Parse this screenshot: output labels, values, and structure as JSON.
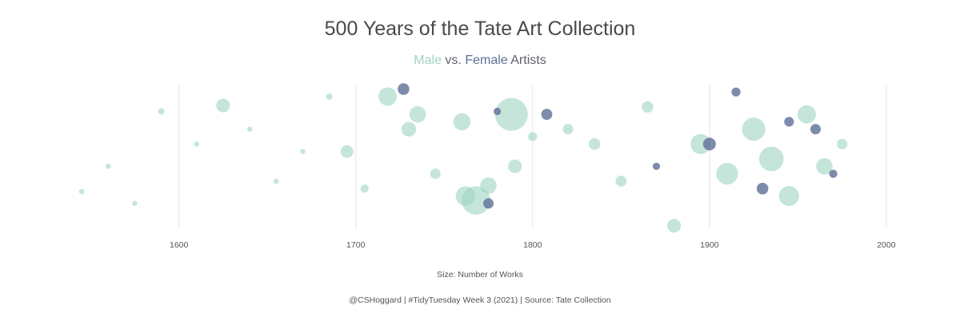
{
  "chart_data": {
    "type": "scatter",
    "title": "500 Years of the Tate Art Collection",
    "subtitle": {
      "male_label": "Male",
      "vs": "vs.",
      "female_label": "Female",
      "rest": "Artists"
    },
    "size_legend": "Size: Number of Works",
    "caption": "@CSHoggard | #TidyTuesday Week 3 (2021) | Source: Tate Collection",
    "xlabel": "",
    "ylabel": "",
    "x_ticks": [
      1600,
      1700,
      1800,
      1900,
      2000
    ],
    "xlim": [
      1535,
      2010
    ],
    "grid": "vertical",
    "legend": "none",
    "colors": {
      "male": "#9fd3c1",
      "female": "#5d6f97"
    },
    "series": [
      {
        "name": "Male",
        "points": [
          {
            "x": 1545,
            "y": 0.28,
            "size": 2
          },
          {
            "x": 1560,
            "y": 0.45,
            "size": 2
          },
          {
            "x": 1575,
            "y": 0.2,
            "size": 2
          },
          {
            "x": 1590,
            "y": 0.82,
            "size": 3
          },
          {
            "x": 1610,
            "y": 0.6,
            "size": 2
          },
          {
            "x": 1625,
            "y": 0.86,
            "size": 14
          },
          {
            "x": 1640,
            "y": 0.7,
            "size": 2
          },
          {
            "x": 1655,
            "y": 0.35,
            "size": 2
          },
          {
            "x": 1670,
            "y": 0.55,
            "size": 2
          },
          {
            "x": 1685,
            "y": 0.92,
            "size": 3
          },
          {
            "x": 1695,
            "y": 0.55,
            "size": 12
          },
          {
            "x": 1705,
            "y": 0.3,
            "size": 5
          },
          {
            "x": 1718,
            "y": 0.92,
            "size": 25
          },
          {
            "x": 1730,
            "y": 0.7,
            "size": 16
          },
          {
            "x": 1735,
            "y": 0.8,
            "size": 20
          },
          {
            "x": 1745,
            "y": 0.4,
            "size": 8
          },
          {
            "x": 1760,
            "y": 0.75,
            "size": 22
          },
          {
            "x": 1762,
            "y": 0.25,
            "size": 28
          },
          {
            "x": 1768,
            "y": 0.22,
            "size": 60
          },
          {
            "x": 1775,
            "y": 0.32,
            "size": 20
          },
          {
            "x": 1788,
            "y": 0.8,
            "size": 80
          },
          {
            "x": 1790,
            "y": 0.45,
            "size": 14
          },
          {
            "x": 1800,
            "y": 0.65,
            "size": 6
          },
          {
            "x": 1820,
            "y": 0.7,
            "size": 8
          },
          {
            "x": 1835,
            "y": 0.6,
            "size": 10
          },
          {
            "x": 1850,
            "y": 0.35,
            "size": 9
          },
          {
            "x": 1865,
            "y": 0.85,
            "size": 10
          },
          {
            "x": 1880,
            "y": 0.05,
            "size": 14
          },
          {
            "x": 1895,
            "y": 0.6,
            "size": 30
          },
          {
            "x": 1910,
            "y": 0.4,
            "size": 35
          },
          {
            "x": 1925,
            "y": 0.7,
            "size": 40
          },
          {
            "x": 1935,
            "y": 0.5,
            "size": 45
          },
          {
            "x": 1945,
            "y": 0.25,
            "size": 30
          },
          {
            "x": 1955,
            "y": 0.8,
            "size": 25
          },
          {
            "x": 1965,
            "y": 0.45,
            "size": 20
          },
          {
            "x": 1975,
            "y": 0.6,
            "size": 8
          }
        ]
      },
      {
        "name": "Female",
        "points": [
          {
            "x": 1727,
            "y": 0.97,
            "size": 10
          },
          {
            "x": 1775,
            "y": 0.2,
            "size": 8
          },
          {
            "x": 1780,
            "y": 0.82,
            "size": 4
          },
          {
            "x": 1808,
            "y": 0.8,
            "size": 9
          },
          {
            "x": 1870,
            "y": 0.45,
            "size": 4
          },
          {
            "x": 1900,
            "y": 0.6,
            "size": 12
          },
          {
            "x": 1915,
            "y": 0.95,
            "size": 6
          },
          {
            "x": 1930,
            "y": 0.3,
            "size": 10
          },
          {
            "x": 1945,
            "y": 0.75,
            "size": 7
          },
          {
            "x": 1960,
            "y": 0.7,
            "size": 8
          },
          {
            "x": 1970,
            "y": 0.4,
            "size": 5
          }
        ]
      }
    ]
  }
}
